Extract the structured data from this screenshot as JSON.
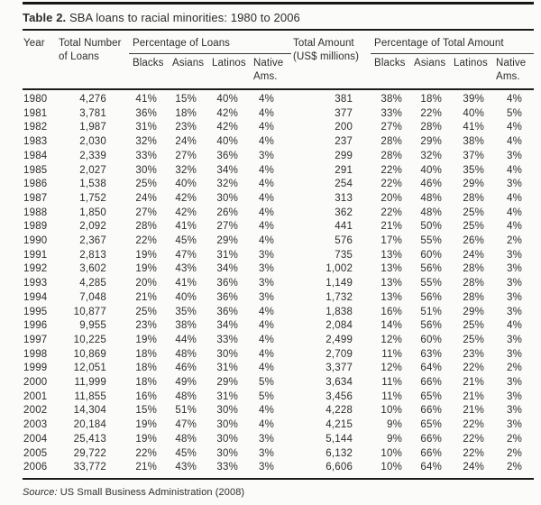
{
  "title": {
    "label": "Table 2.",
    "text": "SBA loans to racial minorities: 1980 to 2006"
  },
  "table": {
    "group_headers": {
      "year": "Year",
      "total_loans": "Total Number\nof Loans",
      "pct_loans": "Percentage of Loans",
      "total_amount": "Total Amount\n(US$ millions)",
      "pct_amount": "Percentage of Total Amount"
    },
    "subheaders": [
      "Blacks",
      "Asians",
      "Latinos",
      "Native\nAms."
    ],
    "rows": [
      {
        "year": "1980",
        "loans": "4,276",
        "pct_loans": [
          "41%",
          "15%",
          "40%",
          "4%"
        ],
        "amount": "381",
        "pct_amount": [
          "38%",
          "18%",
          "39%",
          "4%"
        ]
      },
      {
        "year": "1981",
        "loans": "3,781",
        "pct_loans": [
          "36%",
          "18%",
          "42%",
          "4%"
        ],
        "amount": "377",
        "pct_amount": [
          "33%",
          "22%",
          "40%",
          "5%"
        ]
      },
      {
        "year": "1982",
        "loans": "1,987",
        "pct_loans": [
          "31%",
          "23%",
          "42%",
          "4%"
        ],
        "amount": "200",
        "pct_amount": [
          "27%",
          "28%",
          "41%",
          "4%"
        ]
      },
      {
        "year": "1983",
        "loans": "2,030",
        "pct_loans": [
          "32%",
          "24%",
          "40%",
          "4%"
        ],
        "amount": "237",
        "pct_amount": [
          "28%",
          "29%",
          "38%",
          "4%"
        ]
      },
      {
        "year": "1984",
        "loans": "2,339",
        "pct_loans": [
          "33%",
          "27%",
          "36%",
          "3%"
        ],
        "amount": "299",
        "pct_amount": [
          "28%",
          "32%",
          "37%",
          "3%"
        ]
      },
      {
        "year": "1985",
        "loans": "2,027",
        "pct_loans": [
          "30%",
          "32%",
          "34%",
          "4%"
        ],
        "amount": "291",
        "pct_amount": [
          "22%",
          "40%",
          "35%",
          "4%"
        ]
      },
      {
        "year": "1986",
        "loans": "1,538",
        "pct_loans": [
          "25%",
          "40%",
          "32%",
          "4%"
        ],
        "amount": "254",
        "pct_amount": [
          "22%",
          "46%",
          "29%",
          "3%"
        ]
      },
      {
        "year": "1987",
        "loans": "1,752",
        "pct_loans": [
          "24%",
          "42%",
          "30%",
          "4%"
        ],
        "amount": "313",
        "pct_amount": [
          "20%",
          "48%",
          "28%",
          "4%"
        ]
      },
      {
        "year": "1988",
        "loans": "1,850",
        "pct_loans": [
          "27%",
          "42%",
          "26%",
          "4%"
        ],
        "amount": "362",
        "pct_amount": [
          "22%",
          "48%",
          "25%",
          "4%"
        ]
      },
      {
        "year": "1989",
        "loans": "2,092",
        "pct_loans": [
          "28%",
          "41%",
          "27%",
          "4%"
        ],
        "amount": "441",
        "pct_amount": [
          "21%",
          "50%",
          "25%",
          "4%"
        ]
      },
      {
        "year": "1990",
        "loans": "2,367",
        "pct_loans": [
          "22%",
          "45%",
          "29%",
          "4%"
        ],
        "amount": "576",
        "pct_amount": [
          "17%",
          "55%",
          "26%",
          "2%"
        ]
      },
      {
        "year": "1991",
        "loans": "2,813",
        "pct_loans": [
          "19%",
          "47%",
          "31%",
          "3%"
        ],
        "amount": "735",
        "pct_amount": [
          "13%",
          "60%",
          "24%",
          "3%"
        ]
      },
      {
        "year": "1992",
        "loans": "3,602",
        "pct_loans": [
          "19%",
          "43%",
          "34%",
          "3%"
        ],
        "amount": "1,002",
        "pct_amount": [
          "13%",
          "56%",
          "28%",
          "3%"
        ]
      },
      {
        "year": "1993",
        "loans": "4,285",
        "pct_loans": [
          "20%",
          "41%",
          "36%",
          "3%"
        ],
        "amount": "1,149",
        "pct_amount": [
          "13%",
          "55%",
          "28%",
          "3%"
        ]
      },
      {
        "year": "1994",
        "loans": "7,048",
        "pct_loans": [
          "21%",
          "40%",
          "36%",
          "3%"
        ],
        "amount": "1,732",
        "pct_amount": [
          "13%",
          "56%",
          "28%",
          "3%"
        ]
      },
      {
        "year": "1995",
        "loans": "10,877",
        "pct_loans": [
          "25%",
          "35%",
          "36%",
          "4%"
        ],
        "amount": "1,838",
        "pct_amount": [
          "16%",
          "51%",
          "29%",
          "3%"
        ]
      },
      {
        "year": "1996",
        "loans": "9,955",
        "pct_loans": [
          "23%",
          "38%",
          "34%",
          "4%"
        ],
        "amount": "2,084",
        "pct_amount": [
          "14%",
          "56%",
          "25%",
          "4%"
        ]
      },
      {
        "year": "1997",
        "loans": "10,225",
        "pct_loans": [
          "19%",
          "44%",
          "33%",
          "4%"
        ],
        "amount": "2,499",
        "pct_amount": [
          "12%",
          "60%",
          "25%",
          "3%"
        ]
      },
      {
        "year": "1998",
        "loans": "10,869",
        "pct_loans": [
          "18%",
          "48%",
          "30%",
          "4%"
        ],
        "amount": "2,709",
        "pct_amount": [
          "11%",
          "63%",
          "23%",
          "3%"
        ]
      },
      {
        "year": "1999",
        "loans": "12,051",
        "pct_loans": [
          "18%",
          "46%",
          "31%",
          "4%"
        ],
        "amount": "3,377",
        "pct_amount": [
          "12%",
          "64%",
          "22%",
          "2%"
        ]
      },
      {
        "year": "2000",
        "loans": "11,999",
        "pct_loans": [
          "18%",
          "49%",
          "29%",
          "5%"
        ],
        "amount": "3,634",
        "pct_amount": [
          "11%",
          "66%",
          "21%",
          "3%"
        ]
      },
      {
        "year": "2001",
        "loans": "11,855",
        "pct_loans": [
          "16%",
          "48%",
          "31%",
          "5%"
        ],
        "amount": "3,456",
        "pct_amount": [
          "11%",
          "65%",
          "21%",
          "3%"
        ]
      },
      {
        "year": "2002",
        "loans": "14,304",
        "pct_loans": [
          "15%",
          "51%",
          "30%",
          "4%"
        ],
        "amount": "4,228",
        "pct_amount": [
          "10%",
          "66%",
          "21%",
          "3%"
        ]
      },
      {
        "year": "2003",
        "loans": "20,184",
        "pct_loans": [
          "19%",
          "47%",
          "30%",
          "4%"
        ],
        "amount": "4,215",
        "pct_amount": [
          "9%",
          "65%",
          "22%",
          "3%"
        ]
      },
      {
        "year": "2004",
        "loans": "25,413",
        "pct_loans": [
          "19%",
          "48%",
          "30%",
          "3%"
        ],
        "amount": "5,144",
        "pct_amount": [
          "9%",
          "66%",
          "22%",
          "2%"
        ]
      },
      {
        "year": "2005",
        "loans": "29,722",
        "pct_loans": [
          "22%",
          "45%",
          "30%",
          "3%"
        ],
        "amount": "6,132",
        "pct_amount": [
          "10%",
          "66%",
          "22%",
          "2%"
        ]
      },
      {
        "year": "2006",
        "loans": "33,772",
        "pct_loans": [
          "21%",
          "43%",
          "33%",
          "3%"
        ],
        "amount": "6,606",
        "pct_amount": [
          "10%",
          "64%",
          "24%",
          "2%"
        ]
      }
    ]
  },
  "source": {
    "label": "Source:",
    "text": "US Small Business Administration (2008)"
  }
}
